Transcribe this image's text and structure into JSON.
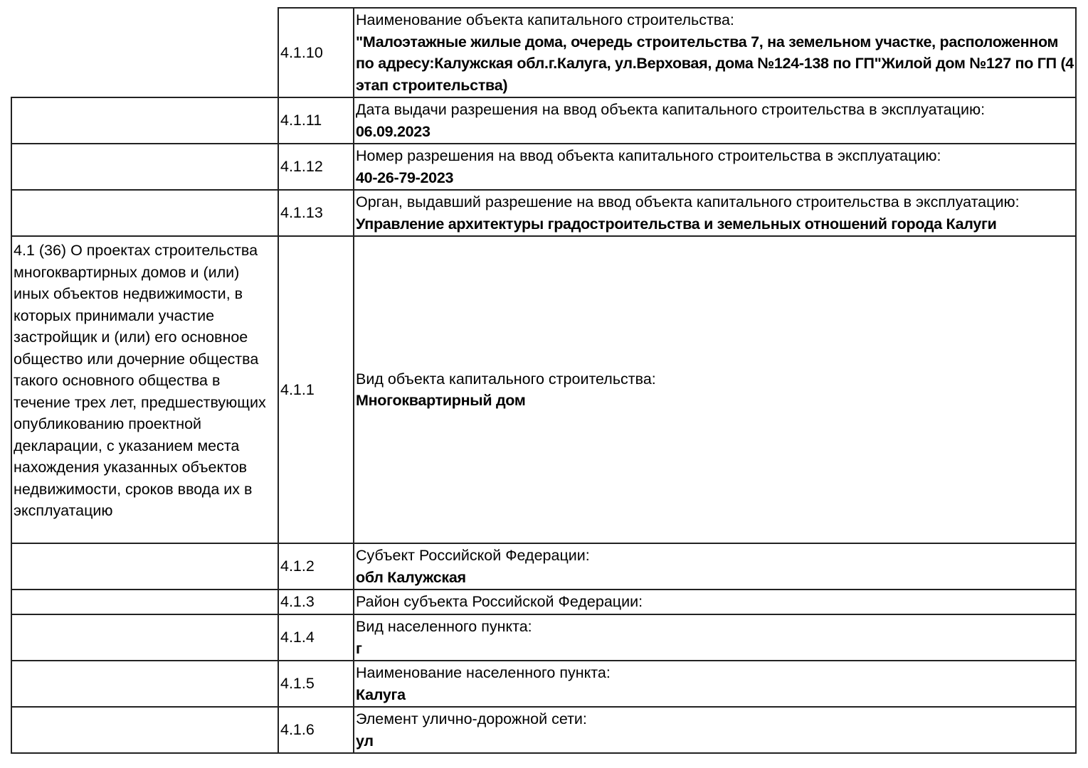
{
  "rows": [
    {
      "section": "",
      "code": "4.1.10",
      "label": "Наименование объекта капитального строительства:",
      "value": "\"Малоэтажные жилые дома, очередь строительства 7, на земельном участке, расположенном по адресу:Калужская обл.г.Калуга, ул.Верховая, дома №124-138 по ГП\"Жилой дом №127 по ГП (4 этап строительства)"
    },
    {
      "section": "",
      "code": "4.1.11",
      "label": "Дата выдачи разрешения на ввод объекта капитального строительства в эксплуатацию:",
      "value": "06.09.2023"
    },
    {
      "section": "",
      "code": "4.1.12",
      "label": "Номер разрешения на ввод объекта капитального строительства в эксплуатацию:",
      "value": "40-26-79-2023"
    },
    {
      "section": "",
      "code": "4.1.13",
      "label": "Орган, выдавший разрешение на ввод объекта капитального строительства в эксплуатацию:",
      "value": "Управление архитектуры градостроительства и земельных отношений города Калуги"
    },
    {
      "section": "4.1 (36) О проектах строительства многоквартирных домов и (или) иных объектов недвижимости, в которых принимали участие застройщик и (или) его основное общество или дочерние общества такого основного общества в течение трех лет, предшествующих опубликованию проектной декларации, с указанием места нахождения указанных объектов недвижимости, сроков ввода их в эксплуатацию",
      "code": "4.1.1",
      "label": "Вид объекта капитального строительства:",
      "value": "Многоквартирный дом"
    },
    {
      "section": "",
      "code": "4.1.2",
      "label": "Субъект Российской Федерации:",
      "value": "обл Калужская"
    },
    {
      "section": "",
      "code": "4.1.3",
      "label": "Район субъекта Российской Федерации:",
      "value": ""
    },
    {
      "section": "",
      "code": "4.1.4",
      "label": "Вид населенного пункта:",
      "value": "г"
    },
    {
      "section": "",
      "code": "4.1.5",
      "label": "Наименование населенного пункта:",
      "value": "Калуга"
    },
    {
      "section": "",
      "code": "4.1.6",
      "label": "Элемент улично-дорожной сети:",
      "value": "ул"
    }
  ]
}
